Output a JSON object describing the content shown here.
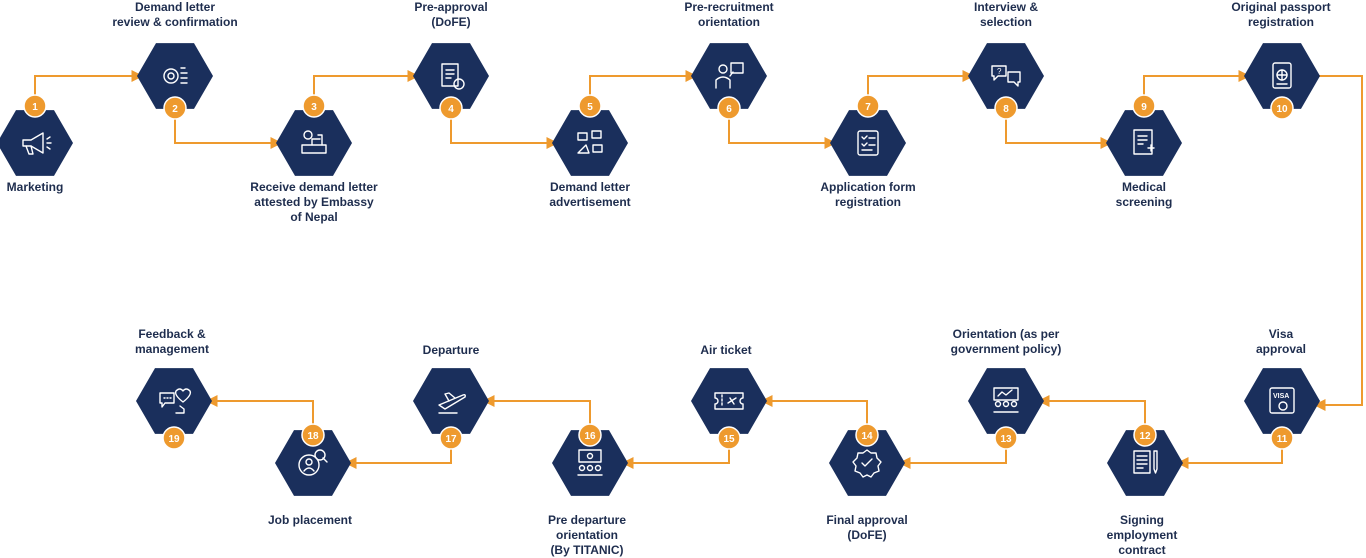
{
  "colors": {
    "navy": "#1a2f5c",
    "orange": "#ee9a2e",
    "text": "#1e2d4e"
  },
  "steps": [
    {
      "n": "1",
      "lines": [
        "Marketing"
      ],
      "icon": "megaphone-icon"
    },
    {
      "n": "2",
      "lines": [
        "Demand letter",
        "review & confirmation"
      ],
      "icon": "review-icon"
    },
    {
      "n": "3",
      "lines": [
        "Receive demand letter",
        "attested by Embassy",
        "of Nepal"
      ],
      "icon": "embassy-desk-icon"
    },
    {
      "n": "4",
      "lines": [
        "Pre-approval",
        "(DoFE)"
      ],
      "icon": "document-approval-icon"
    },
    {
      "n": "5",
      "lines": [
        "Demand letter",
        "advertisement"
      ],
      "icon": "advertisement-icon"
    },
    {
      "n": "6",
      "lines": [
        "Pre-recruitment",
        "orientation"
      ],
      "icon": "presenter-icon"
    },
    {
      "n": "7",
      "lines": [
        "Application form",
        "registration"
      ],
      "icon": "checklist-icon"
    },
    {
      "n": "8",
      "lines": [
        "Interview &",
        "selection"
      ],
      "icon": "chat-bubbles-icon"
    },
    {
      "n": "9",
      "lines": [
        "Medical",
        "screening"
      ],
      "icon": "medical-report-icon"
    },
    {
      "n": "10",
      "lines": [
        "Original passport",
        "registration"
      ],
      "icon": "passport-icon"
    },
    {
      "n": "11",
      "lines": [
        "Visa",
        "approval"
      ],
      "icon": "visa-icon"
    },
    {
      "n": "12",
      "lines": [
        "Signing",
        "employment",
        "contract"
      ],
      "icon": "contract-pen-icon"
    },
    {
      "n": "13",
      "lines": [
        "Orientation (as per",
        "government policy)"
      ],
      "icon": "classroom-icon"
    },
    {
      "n": "14",
      "lines": [
        "Final approval",
        "(DoFE)"
      ],
      "icon": "verified-badge-icon"
    },
    {
      "n": "15",
      "lines": [
        "Air ticket"
      ],
      "icon": "ticket-icon"
    },
    {
      "n": "16",
      "lines": [
        "Pre departure",
        "orientation",
        "(By TITANIC)"
      ],
      "icon": "seminar-icon"
    },
    {
      "n": "17",
      "lines": [
        "Departure"
      ],
      "icon": "airplane-icon"
    },
    {
      "n": "18",
      "lines": [
        "Job placement"
      ],
      "icon": "job-search-icon"
    },
    {
      "n": "19",
      "lines": [
        "Feedback &",
        "management"
      ],
      "icon": "feedback-icon"
    }
  ]
}
